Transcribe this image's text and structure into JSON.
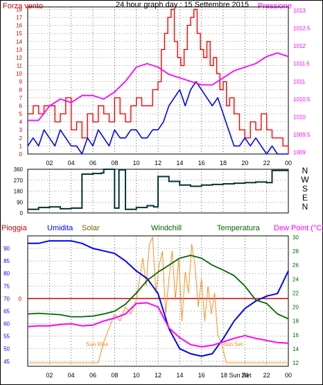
{
  "header": {
    "left_label": "Forza vento",
    "title": "24 hour graph day : 15 Settembre 2015",
    "right_label": "Pressione"
  },
  "colors": {
    "wind_gust": "#ff0000",
    "wind_avg": "#0000ff",
    "pressure": "#ff00ff",
    "direction": "#003333",
    "rain": "#cc0000",
    "humidity": "#0000ff",
    "solar": "#ff8c1a",
    "windchill": "#006600",
    "temperature": "#006600",
    "dewpoint": "#ff00ff",
    "grid": "#000000",
    "frame": "#000000"
  },
  "chart_data": [
    {
      "type": "line",
      "panel": "wind",
      "title": "24 hour graph day : 15 Settembre 2015",
      "y_left_label": "Forza vento",
      "y_right_label": "Pressione",
      "x_ticks": [
        "02",
        "04",
        "06",
        "08",
        "10",
        "12",
        "14",
        "16",
        "18",
        "20",
        "22",
        "00"
      ],
      "y_left_ticks": [
        "0",
        "1",
        "2",
        "3",
        "4",
        "5",
        "6",
        "7",
        "8",
        "9",
        "10",
        "11",
        "12",
        "13",
        "14",
        "15",
        "16",
        "17",
        "18"
      ],
      "y_right_ticks": [
        "1009",
        "1009.5",
        "1010",
        "1010.5",
        "1011",
        "1011.5",
        "1012",
        "1012.5",
        "1013"
      ],
      "ylim_left": [
        0,
        18.3
      ],
      "ylim_right": [
        1008.95,
        1013.1
      ],
      "series": [
        {
          "key": "gust",
          "x": [
            0,
            0.5,
            1,
            1.5,
            2,
            2.5,
            3,
            3.5,
            4,
            4.5,
            5,
            5.5,
            6,
            6.5,
            7,
            7.5,
            8,
            8.5,
            9,
            9.5,
            10,
            10.5,
            11,
            11.5,
            12,
            12.3,
            12.6,
            12.9,
            13.2,
            13.5,
            13.8,
            14.1,
            14.4,
            14.7,
            15,
            15.3,
            15.6,
            15.9,
            16.2,
            16.5,
            16.8,
            17.1,
            17.4,
            17.7,
            18,
            18.3,
            18.6,
            19,
            19.5,
            20,
            20.5,
            21,
            21.5,
            22,
            22.5,
            23,
            23.5,
            24
          ],
          "values": [
            5,
            6,
            5,
            6,
            6,
            4,
            5,
            7,
            3,
            4,
            2,
            5,
            4,
            6,
            5,
            4,
            7,
            5,
            4,
            6,
            7,
            6,
            6,
            8,
            9,
            13,
            15,
            17,
            18,
            14,
            12,
            11,
            13,
            16,
            17,
            18,
            15,
            13,
            12,
            14,
            11,
            12,
            10,
            8,
            9,
            6,
            7,
            5,
            3,
            2,
            4,
            3,
            5,
            3,
            2,
            2,
            1,
            0
          ]
        },
        {
          "key": "avg",
          "x": [
            0,
            0.5,
            1,
            1.5,
            2,
            2.5,
            3,
            3.5,
            4,
            4.5,
            5,
            5.5,
            6,
            6.5,
            7,
            7.5,
            8,
            8.5,
            9,
            9.5,
            10,
            10.5,
            11,
            11.5,
            12,
            12.5,
            13,
            13.5,
            14,
            14.5,
            15,
            15.5,
            16,
            16.5,
            17,
            17.5,
            18,
            18.5,
            19,
            19.5,
            20,
            20.5,
            21,
            21.5,
            22,
            22.5,
            23,
            23.5,
            24
          ],
          "values": [
            1,
            2,
            1,
            3,
            2,
            1,
            3,
            2,
            1,
            1,
            0,
            2,
            1,
            3,
            2,
            1,
            3,
            2,
            2,
            3,
            3,
            2,
            2,
            3,
            3,
            4,
            6,
            7,
            8,
            6,
            8,
            9,
            8,
            7,
            6,
            7,
            5,
            3,
            1,
            1,
            2,
            1,
            2,
            1,
            0,
            1,
            0,
            0,
            0
          ]
        },
        {
          "key": "pressure",
          "axis": "right",
          "x": [
            0,
            1,
            2,
            3,
            4,
            5,
            6,
            7,
            8,
            9,
            10,
            11,
            12,
            13,
            14,
            15,
            16,
            17,
            18,
            19,
            20,
            21,
            22,
            23,
            24
          ],
          "values": [
            1009.9,
            1009.9,
            1010.3,
            1010.5,
            1010.4,
            1010.6,
            1010.6,
            1010.5,
            1010.7,
            1011,
            1011.4,
            1011.5,
            1011.4,
            1011.2,
            1011.1,
            1011,
            1010.9,
            1010.9,
            1011.1,
            1011.3,
            1011.4,
            1011.5,
            1011.7,
            1011.8,
            1011.7
          ]
        }
      ]
    },
    {
      "type": "line",
      "panel": "direction",
      "y_left_ticks": [
        "0",
        "90",
        "180",
        "270",
        "360"
      ],
      "y_right_ticks": [
        "N",
        "W",
        "S",
        "E",
        "N"
      ],
      "ylim": [
        0,
        360
      ],
      "series": [
        {
          "key": "dir",
          "x": [
            0,
            1,
            2,
            3,
            4,
            5,
            6,
            6.8,
            7,
            8,
            8.4,
            9,
            10,
            11,
            11.6,
            12,
            13,
            14,
            15,
            16,
            17,
            18,
            19,
            20,
            21,
            22,
            22.5,
            23,
            24
          ],
          "values": [
            30,
            45,
            50,
            35,
            40,
            320,
            325,
            330,
            360,
            40,
            355,
            30,
            45,
            60,
            50,
            300,
            260,
            230,
            220,
            230,
            235,
            240,
            245,
            250,
            255,
            250,
            350,
            350,
            350
          ]
        }
      ]
    },
    {
      "type": "line",
      "panel": "weather",
      "legend": [
        "Pioggia",
        "Umidita",
        "Solar",
        "Windchill",
        "Temperatura",
        "Dew Point (°C)"
      ],
      "y_left_ticks": [
        "45",
        "50",
        "55",
        "60",
        "65",
        "70",
        "75",
        "80",
        "85",
        "90"
      ],
      "y_right_ticks": [
        "12",
        "14",
        "16",
        "18",
        "20",
        "22",
        "24",
        "26",
        "28",
        "30"
      ],
      "ylim_left": [
        43,
        95
      ],
      "ylim_right": [
        11.5,
        30.2
      ],
      "annotations": [
        "0",
        "Sun Rise",
        "Sun Set",
        "18 Sun Set"
      ],
      "series": [
        {
          "key": "humidity",
          "axis": "left",
          "x": [
            0,
            1,
            2,
            3,
            4,
            5,
            6,
            7,
            8,
            9,
            10,
            11,
            12,
            13,
            14,
            15,
            16,
            17,
            18,
            19,
            20,
            21,
            22,
            23,
            24
          ],
          "values": [
            92,
            92,
            93,
            93,
            93,
            92,
            90,
            89,
            88,
            85,
            81,
            78,
            72,
            58,
            50,
            48,
            47,
            48,
            54,
            61,
            66,
            69,
            71,
            72,
            81
          ]
        },
        {
          "key": "temperature",
          "axis": "right",
          "x": [
            0,
            1,
            2,
            3,
            4,
            5,
            6,
            7,
            8,
            9,
            10,
            11,
            12,
            13,
            14,
            15,
            16,
            17,
            18,
            19,
            20,
            21,
            22,
            23,
            24
          ],
          "values": [
            19,
            19.1,
            19,
            18.9,
            18.6,
            18.6,
            18.7,
            19,
            19.4,
            20.4,
            22,
            23.8,
            25,
            26,
            27,
            27.4,
            27,
            26,
            25.3,
            24.5,
            23,
            21,
            20.5,
            19,
            18.3
          ]
        },
        {
          "key": "dewpoint",
          "axis": "right",
          "x": [
            0,
            1,
            2,
            3,
            4,
            5,
            6,
            7,
            8,
            9,
            10,
            11,
            12,
            13,
            14,
            15,
            16,
            17,
            18,
            19,
            20,
            21,
            22,
            23,
            24
          ],
          "values": [
            17.2,
            17.3,
            17.3,
            17.5,
            17.6,
            17.3,
            17.4,
            18,
            18.4,
            19,
            20.5,
            20.6,
            20,
            17,
            15.6,
            14.6,
            14.3,
            14.5,
            15,
            15.5,
            15.9,
            15.5,
            15.2,
            14.9,
            14.8
          ]
        },
        {
          "key": "solar",
          "axis": "right",
          "x": [
            0,
            6.5,
            7,
            7.5,
            8,
            8.5,
            9,
            9.5,
            10,
            10.3,
            10.6,
            10.9,
            11.2,
            11.5,
            11.8,
            12.1,
            12.4,
            12.7,
            13,
            13.3,
            13.6,
            13.9,
            14.2,
            14.5,
            14.8,
            15.1,
            15.4,
            15.7,
            16,
            16.3,
            16.6,
            16.9,
            17.2,
            17.5,
            17.8,
            18.3,
            24
          ],
          "values": [
            12,
            12,
            15,
            17,
            19,
            18,
            20,
            19,
            21,
            24,
            27,
            23,
            29,
            30,
            22,
            26,
            28,
            19,
            24,
            28,
            21,
            27,
            18,
            25,
            22,
            29,
            26,
            20,
            24,
            18,
            23,
            19,
            22,
            16,
            15,
            12,
            12
          ]
        }
      ]
    }
  ]
}
